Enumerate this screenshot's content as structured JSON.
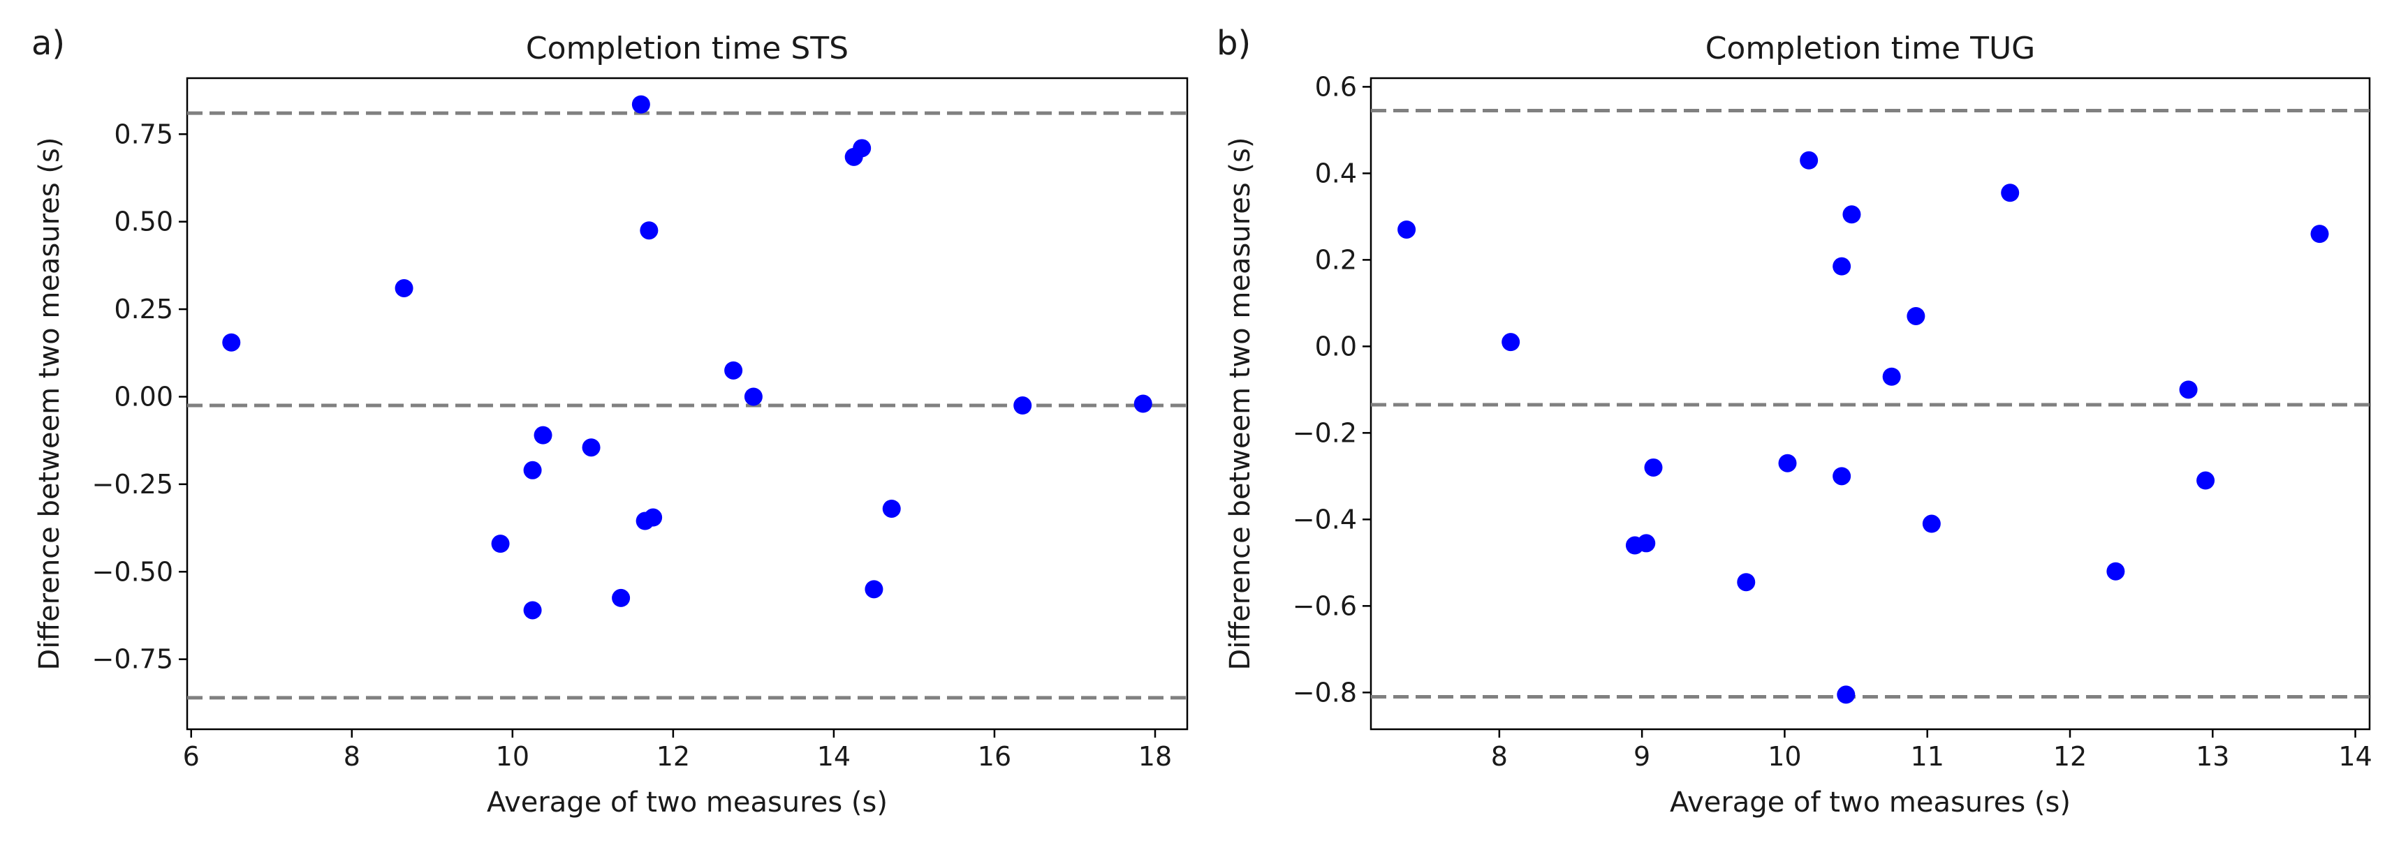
{
  "chart_data": [
    {
      "type": "scatter",
      "panel_label": "a)",
      "title": "Completion time STS",
      "xlabel": "Average of two measures (s)",
      "ylabel": "Difference betweem two measures (s)",
      "xlim": [
        5.95,
        18.4
      ],
      "ylim": [
        -0.95,
        0.91
      ],
      "xticks": [
        6,
        8,
        10,
        12,
        14,
        16,
        18
      ],
      "xtick_labels": [
        "6",
        "8",
        "10",
        "12",
        "14",
        "16",
        "18"
      ],
      "yticks": [
        0.75,
        0.5,
        0.25,
        0.0,
        -0.25,
        -0.5,
        -0.75
      ],
      "ytick_labels": [
        "0.75",
        "0.50",
        "0.25",
        "0.00",
        "−0.25",
        "−0.50",
        "−0.75"
      ],
      "hlines": [
        0.81,
        -0.025,
        -0.86
      ],
      "point_color": "#0000ff",
      "line_color": "#808080",
      "points": [
        {
          "x": 6.5,
          "y": 0.155
        },
        {
          "x": 8.65,
          "y": 0.31
        },
        {
          "x": 9.85,
          "y": -0.42
        },
        {
          "x": 10.25,
          "y": -0.21
        },
        {
          "x": 10.25,
          "y": -0.61
        },
        {
          "x": 10.38,
          "y": -0.11
        },
        {
          "x": 10.98,
          "y": -0.145
        },
        {
          "x": 11.35,
          "y": -0.575
        },
        {
          "x": 11.6,
          "y": 0.835
        },
        {
          "x": 11.65,
          "y": -0.355
        },
        {
          "x": 11.7,
          "y": 0.475
        },
        {
          "x": 11.75,
          "y": -0.345
        },
        {
          "x": 12.75,
          "y": 0.075
        },
        {
          "x": 13.0,
          "y": 0.0
        },
        {
          "x": 14.25,
          "y": 0.685
        },
        {
          "x": 14.35,
          "y": 0.71
        },
        {
          "x": 14.5,
          "y": -0.55
        },
        {
          "x": 14.72,
          "y": -0.32
        },
        {
          "x": 16.35,
          "y": -0.025
        },
        {
          "x": 17.85,
          "y": -0.02
        }
      ]
    },
    {
      "type": "scatter",
      "panel_label": "b)",
      "title": "Completion time TUG",
      "xlabel": "Average of two measures (s)",
      "ylabel": "Difference betweem two measures (s)",
      "xlim": [
        7.1,
        14.1
      ],
      "ylim": [
        -0.885,
        0.62
      ],
      "xticks": [
        8,
        9,
        10,
        11,
        12,
        13,
        14
      ],
      "xtick_labels": [
        "8",
        "9",
        "10",
        "11",
        "12",
        "13",
        "14"
      ],
      "yticks": [
        0.6,
        0.4,
        0.2,
        0.0,
        -0.2,
        -0.4,
        -0.6,
        -0.8
      ],
      "ytick_labels": [
        "0.6",
        "0.4",
        "0.2",
        "0.0",
        "−0.2",
        "−0.4",
        "−0.6",
        "−0.8"
      ],
      "hlines": [
        0.545,
        -0.135,
        -0.81
      ],
      "point_color": "#0000ff",
      "line_color": "#808080",
      "points": [
        {
          "x": 7.35,
          "y": 0.27
        },
        {
          "x": 8.08,
          "y": 0.01
        },
        {
          "x": 8.95,
          "y": -0.46
        },
        {
          "x": 9.03,
          "y": -0.455
        },
        {
          "x": 9.08,
          "y": -0.28
        },
        {
          "x": 9.73,
          "y": -0.545
        },
        {
          "x": 10.02,
          "y": -0.27
        },
        {
          "x": 10.17,
          "y": 0.43
        },
        {
          "x": 10.4,
          "y": 0.185
        },
        {
          "x": 10.4,
          "y": -0.3
        },
        {
          "x": 10.43,
          "y": -0.805
        },
        {
          "x": 10.47,
          "y": 0.305
        },
        {
          "x": 10.75,
          "y": -0.07
        },
        {
          "x": 10.92,
          "y": 0.07
        },
        {
          "x": 11.03,
          "y": -0.41
        },
        {
          "x": 11.58,
          "y": 0.355
        },
        {
          "x": 12.32,
          "y": -0.52
        },
        {
          "x": 12.83,
          "y": -0.1
        },
        {
          "x": 12.95,
          "y": -0.31
        },
        {
          "x": 13.75,
          "y": 0.26
        }
      ]
    }
  ]
}
